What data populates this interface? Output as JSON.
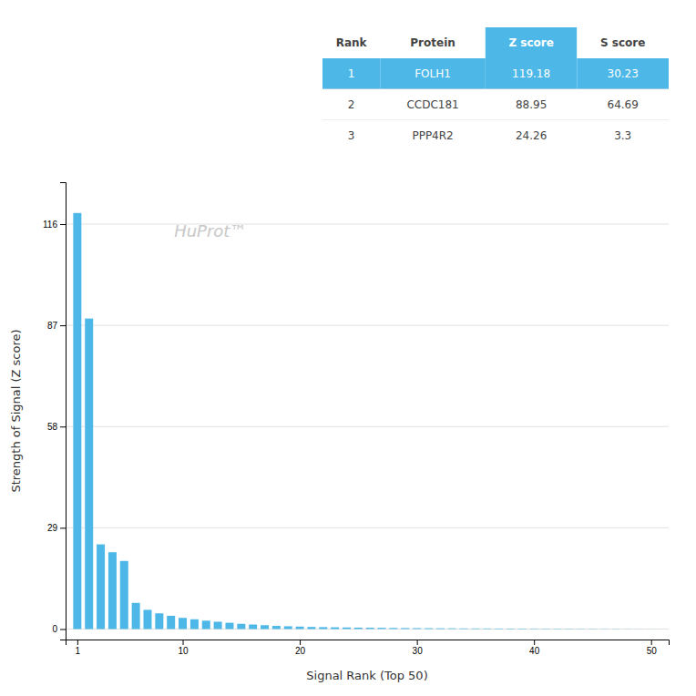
{
  "chart_data": {
    "type": "bar",
    "x": [
      1,
      2,
      3,
      4,
      5,
      6,
      7,
      8,
      9,
      10,
      11,
      12,
      13,
      14,
      15,
      16,
      17,
      18,
      19,
      20,
      21,
      22,
      23,
      24,
      25,
      26,
      27,
      28,
      29,
      30,
      31,
      32,
      33,
      34,
      35,
      36,
      37,
      38,
      39,
      40,
      41,
      42,
      43,
      44,
      45,
      46,
      47,
      48,
      49,
      50
    ],
    "values": [
      119.18,
      88.95,
      24.26,
      22.0,
      19.5,
      7.5,
      5.5,
      4.5,
      3.8,
      3.2,
      2.8,
      2.4,
      2.1,
      1.8,
      1.5,
      1.3,
      1.1,
      0.9,
      0.8,
      0.7,
      0.6,
      0.55,
      0.5,
      0.45,
      0.4,
      0.37,
      0.34,
      0.31,
      0.28,
      0.26,
      0.24,
      0.22,
      0.2,
      0.18,
      0.17,
      0.16,
      0.15,
      0.14,
      0.13,
      0.12,
      0.11,
      0.1,
      0.09,
      0.08,
      0.07,
      0.06,
      0.05,
      0.04,
      0.03,
      0.02
    ],
    "color": "#4db8e8",
    "x_label": "Signal Rank (Top 50)",
    "y_label": "Strength of Signal (Z score)",
    "xlim": [
      0.0,
      51.5
    ],
    "xticks": [
      1,
      10,
      20,
      30,
      40,
      50
    ],
    "ylim": [
      -3,
      128
    ],
    "yticks": [
      0,
      29,
      58,
      87,
      116
    ],
    "grid": true,
    "annotations": [
      "HuProt™"
    ],
    "table": {
      "headers": [
        "Rank",
        "Protein",
        "Z score",
        "S score"
      ],
      "rows": [
        [
          "1",
          "FOLH1",
          "119.18",
          "30.23"
        ],
        [
          "2",
          "CCDC181",
          "88.95",
          "64.69"
        ],
        [
          "3",
          "PPP4R2",
          "24.26",
          "3.3"
        ]
      ]
    }
  }
}
